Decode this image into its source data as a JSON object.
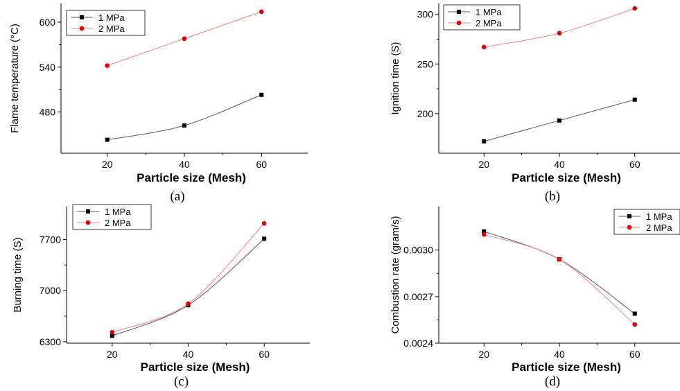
{
  "chart_data": [
    {
      "type": "line",
      "panel_label": "(a)",
      "xlabel": "Particle size (Mesh)",
      "ylabel": "Flame temperature (°C)",
      "x": [
        20,
        40,
        60
      ],
      "xlim": [
        8,
        72
      ],
      "ylim": [
        425,
        625
      ],
      "xticks": [
        20,
        40,
        60
      ],
      "yticks": [
        480,
        540,
        600
      ],
      "legend_position": "top-left",
      "series": [
        {
          "name": "1 MPa",
          "values": [
            443,
            462,
            503
          ],
          "color": "#000000",
          "marker": "square"
        },
        {
          "name": "2 MPa",
          "values": [
            542,
            578,
            614
          ],
          "color": "#e00000",
          "marker": "circle"
        }
      ]
    },
    {
      "type": "line",
      "panel_label": "(b)",
      "xlabel": "Particle size (Mesh)",
      "ylabel": "Ignition time (S)",
      "x": [
        20,
        40,
        60
      ],
      "xlim": [
        8,
        72
      ],
      "ylim": [
        160,
        311
      ],
      "xticks": [
        20,
        40,
        60
      ],
      "yticks": [
        200,
        250,
        300
      ],
      "legend_position": "top-left",
      "series": [
        {
          "name": "1 MPa",
          "values": [
            172,
            193,
            214
          ],
          "color": "#000000",
          "marker": "square"
        },
        {
          "name": "2 MPa",
          "values": [
            267,
            281,
            306
          ],
          "color": "#e00000",
          "marker": "circle"
        }
      ]
    },
    {
      "type": "line",
      "panel_label": "(c)",
      "xlabel": "Particle size (Mesh)",
      "ylabel": "Burning time (S)",
      "x": [
        20,
        40,
        60
      ],
      "xlim": [
        8,
        72
      ],
      "ylim": [
        6280,
        8150
      ],
      "xticks": [
        20,
        40,
        60
      ],
      "yticks": [
        6300,
        7000,
        7700
      ],
      "legend_position": "top-left",
      "series": [
        {
          "name": "1 MPa",
          "values": [
            6380,
            6800,
            7710
          ],
          "color": "#000000",
          "marker": "square"
        },
        {
          "name": "2 MPa",
          "values": [
            6430,
            6820,
            7920
          ],
          "color": "#e00000",
          "marker": "circle"
        }
      ]
    },
    {
      "type": "line",
      "panel_label": "(d)",
      "xlabel": "Particle size (Mesh)",
      "ylabel": "Combustion rate (gram/s)",
      "x": [
        20,
        40,
        60
      ],
      "xlim": [
        8,
        72
      ],
      "ylim": [
        0.0024,
        0.00328
      ],
      "xticks": [
        20,
        40,
        60
      ],
      "yticks": [
        0.0024,
        0.0027,
        0.003
      ],
      "ytick_labels": [
        "0.0024",
        "0.0027",
        "0.0030"
      ],
      "legend_position": "top-right",
      "series": [
        {
          "name": "1 MPa",
          "values": [
            0.00312,
            0.00294,
            0.00259
          ],
          "color": "#000000",
          "marker": "square"
        },
        {
          "name": "2 MPa",
          "values": [
            0.0031,
            0.00294,
            0.00252
          ],
          "color": "#e00000",
          "marker": "circle"
        }
      ]
    }
  ]
}
